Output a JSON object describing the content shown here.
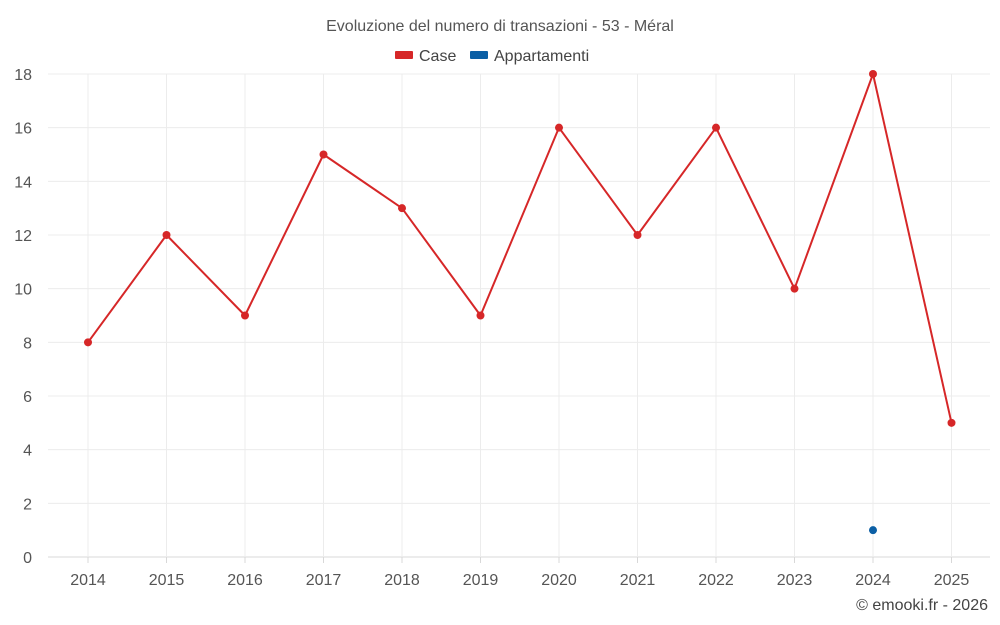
{
  "chart_data": {
    "type": "line",
    "title": "Evoluzione del numero di transazioni - 53 - Méral",
    "categories": [
      "2014",
      "2015",
      "2016",
      "2017",
      "2018",
      "2019",
      "2020",
      "2021",
      "2022",
      "2023",
      "2024",
      "2025"
    ],
    "ylim": [
      0,
      18
    ],
    "yticks": [
      0,
      2,
      4,
      6,
      8,
      10,
      12,
      14,
      16,
      18
    ],
    "grid": true,
    "legend_position": "top-center",
    "series": [
      {
        "name": "Case",
        "color": "#d62728",
        "values": [
          8,
          12,
          9,
          15,
          13,
          9,
          16,
          12,
          16,
          10,
          18,
          5
        ]
      },
      {
        "name": "Appartamenti",
        "color": "#0b5fa5",
        "values": [
          null,
          null,
          null,
          null,
          null,
          null,
          null,
          null,
          null,
          null,
          1,
          null
        ]
      }
    ]
  },
  "credit": "© emooki.fr - 2026"
}
